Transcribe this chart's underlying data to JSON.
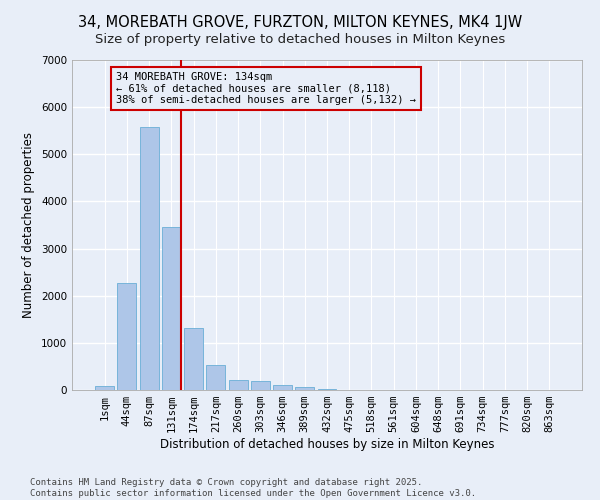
{
  "title": "34, MOREBATH GROVE, FURZTON, MILTON KEYNES, MK4 1JW",
  "subtitle": "Size of property relative to detached houses in Milton Keynes",
  "xlabel": "Distribution of detached houses by size in Milton Keynes",
  "ylabel": "Number of detached properties",
  "categories": [
    "1sqm",
    "44sqm",
    "87sqm",
    "131sqm",
    "174sqm",
    "217sqm",
    "260sqm",
    "303sqm",
    "346sqm",
    "389sqm",
    "432sqm",
    "475sqm",
    "518sqm",
    "561sqm",
    "604sqm",
    "648sqm",
    "691sqm",
    "734sqm",
    "777sqm",
    "820sqm",
    "863sqm"
  ],
  "values": [
    75,
    2280,
    5580,
    3450,
    1320,
    530,
    210,
    185,
    100,
    55,
    30,
    0,
    0,
    0,
    0,
    0,
    0,
    0,
    0,
    0,
    0
  ],
  "bar_color": "#aec6e8",
  "bar_edge_color": "#6aaed6",
  "bg_color": "#e8eef8",
  "grid_color": "#ffffff",
  "vline_index": 3,
  "vline_color": "#cc0000",
  "annotation_text": "34 MOREBATH GROVE: 134sqm\n← 61% of detached houses are smaller (8,118)\n38% of semi-detached houses are larger (5,132) →",
  "annotation_box_color": "#cc0000",
  "ylim": [
    0,
    7000
  ],
  "yticks": [
    0,
    1000,
    2000,
    3000,
    4000,
    5000,
    6000,
    7000
  ],
  "footnote": "Contains HM Land Registry data © Crown copyright and database right 2025.\nContains public sector information licensed under the Open Government Licence v3.0.",
  "title_fontsize": 10.5,
  "subtitle_fontsize": 9.5,
  "label_fontsize": 8.5,
  "tick_fontsize": 7.5,
  "annot_fontsize": 7.5,
  "footnote_fontsize": 6.5
}
